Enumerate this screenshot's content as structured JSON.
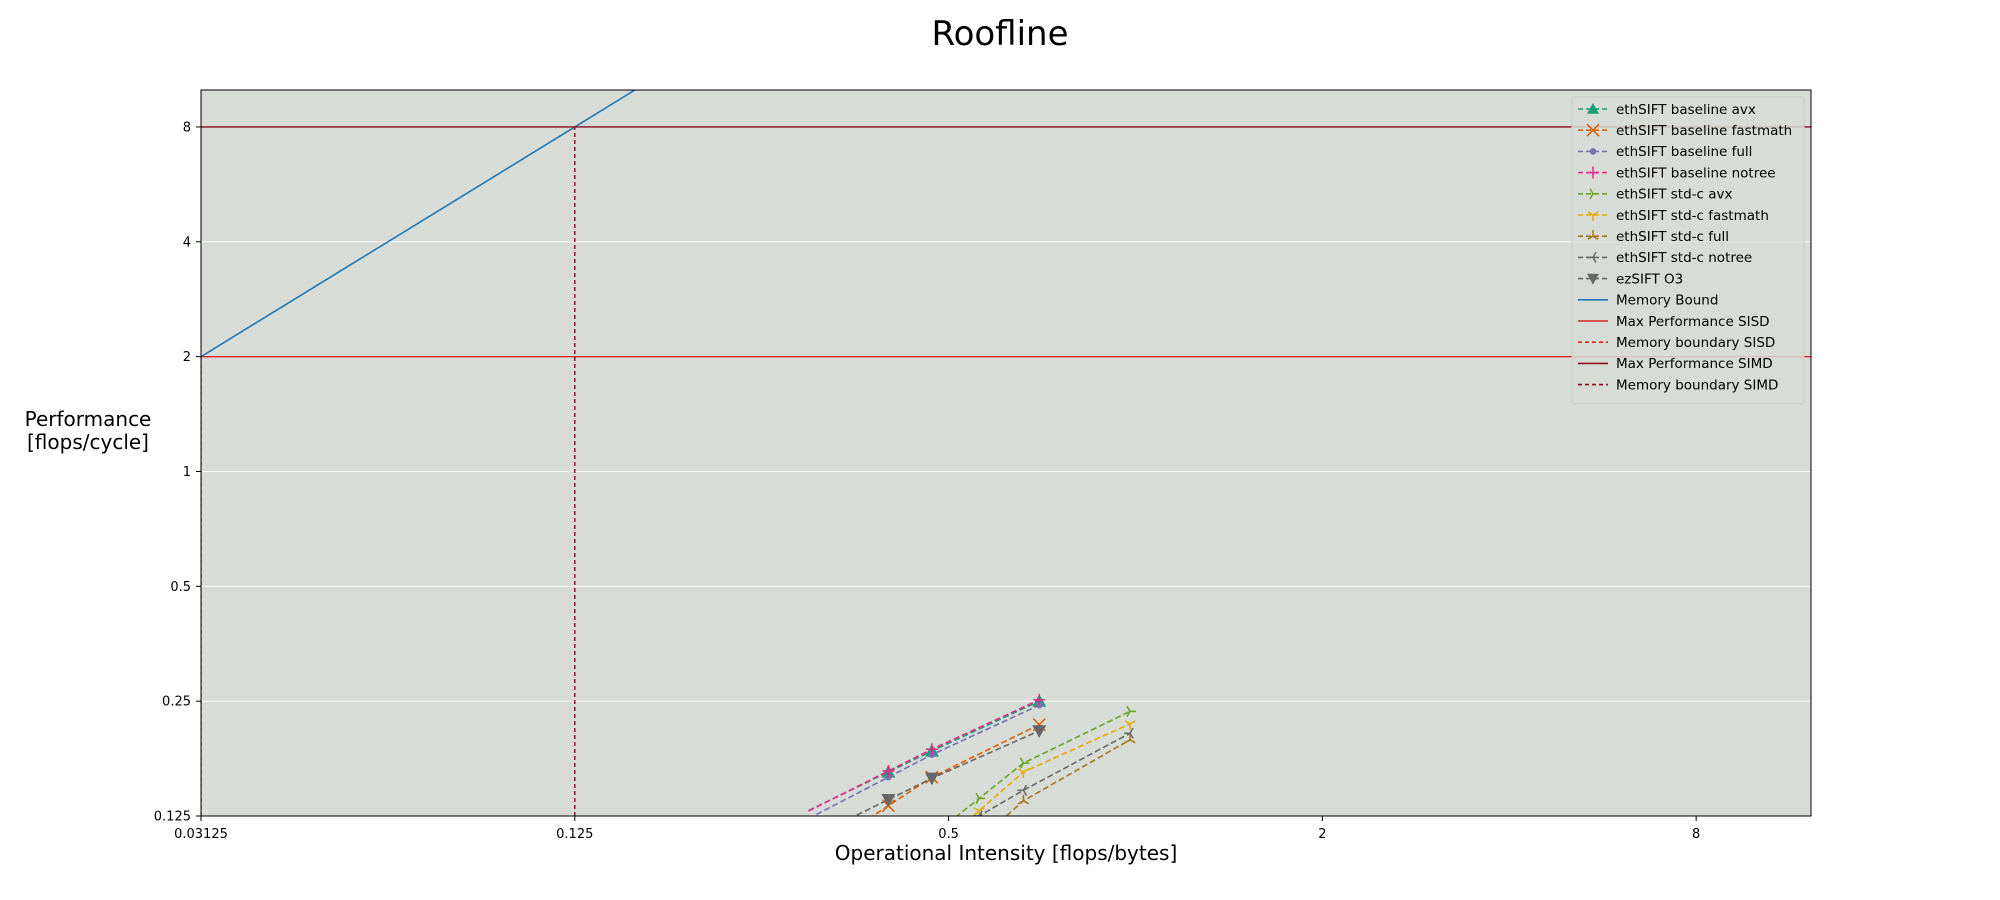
{
  "chart_data": {
    "type": "line",
    "title": "Roofline",
    "xlabel": "Operational Intensity [flops/bytes]",
    "ylabel_lines": [
      "Performance",
      "[flops/cycle]"
    ],
    "xscale": "log2",
    "yscale": "log2",
    "xlim": [
      0.03125,
      12.25
    ],
    "ylim": [
      0.125,
      10.0
    ],
    "xticks": [
      {
        "value": 0.03125,
        "label": "0.03125"
      },
      {
        "value": 0.125,
        "label": "0.125"
      },
      {
        "value": 0.5,
        "label": "0.5"
      },
      {
        "value": 2,
        "label": "2"
      },
      {
        "value": 8,
        "label": "8"
      }
    ],
    "yticks": [
      {
        "value": 0.125,
        "label": "0.125"
      },
      {
        "value": 0.25,
        "label": "0.25"
      },
      {
        "value": 0.5,
        "label": "0.5"
      },
      {
        "value": 1,
        "label": "1"
      },
      {
        "value": 2,
        "label": "2"
      },
      {
        "value": 4,
        "label": "4"
      },
      {
        "value": 8,
        "label": "8"
      }
    ],
    "grid": "y",
    "legend_position": "top-right",
    "background": "#d8dcd6",
    "series": [
      {
        "name": "ethSIFT baseline avx",
        "color": "#1b9e77",
        "marker": "triangle-up",
        "x": [
          0.4,
          0.47,
          0.7
        ],
        "y": [
          0.163,
          0.185,
          0.25
        ]
      },
      {
        "name": "ethSIFT baseline fastmath",
        "color": "#d95f02",
        "marker": "x",
        "x": [
          0.4,
          0.47,
          0.7
        ],
        "y": [
          0.133,
          0.158,
          0.217
        ]
      },
      {
        "name": "ethSIFT baseline full",
        "color": "#7570b3",
        "marker": "dot",
        "x": [
          0.4,
          0.47,
          0.7
        ],
        "y": [
          0.158,
          0.181,
          0.244
        ]
      },
      {
        "name": "ethSIFT baseline notree",
        "color": "#e7298a",
        "marker": "plus",
        "x": [
          0.4,
          0.47,
          0.7
        ],
        "y": [
          0.164,
          0.187,
          0.252
        ]
      },
      {
        "name": "ethSIFT std-c avx",
        "color": "#66a61e",
        "marker": "tri-right",
        "x": [
          0.56,
          0.66,
          0.98
        ],
        "y": [
          0.139,
          0.172,
          0.235
        ]
      },
      {
        "name": "ethSIFT std-c fastmath",
        "color": "#e6ab02",
        "marker": "tri-down",
        "x": [
          0.56,
          0.66,
          0.98
        ],
        "y": [
          0.129,
          0.163,
          0.218
        ]
      },
      {
        "name": "ethSIFT std-c full",
        "color": "#a6761d",
        "marker": "tri-up",
        "x": [
          0.56,
          0.66,
          0.98
        ],
        "y": [
          0.108,
          0.137,
          0.198
        ]
      },
      {
        "name": "ethSIFT std-c notree",
        "color": "#666666",
        "marker": "tri-left",
        "x": [
          0.56,
          0.66,
          0.98
        ],
        "y": [
          0.125,
          0.146,
          0.206
        ]
      },
      {
        "name": "ezSIFT O3",
        "color": "#666666",
        "marker": "triangle-down",
        "x": [
          0.4,
          0.47,
          0.7
        ],
        "y": [
          0.138,
          0.157,
          0.209
        ]
      }
    ],
    "memory_bound": {
      "name": "Memory Bound",
      "color": "#1f77b4",
      "slope_flops_per_byte": 64
    },
    "rooflines": [
      {
        "name": "Max Performance SISD",
        "color": "#d62728",
        "value": 2,
        "style": "solid"
      },
      {
        "name": "Memory boundary SISD",
        "color": "#d62728",
        "value": 0.03125,
        "style": "dashed"
      },
      {
        "name": "Max Performance SIMD",
        "color": "#8b0a1e",
        "value": 8,
        "style": "solid"
      },
      {
        "name": "Memory boundary SIMD",
        "color": "#8b0a1e",
        "value": 0.125,
        "style": "dashed"
      }
    ]
  }
}
